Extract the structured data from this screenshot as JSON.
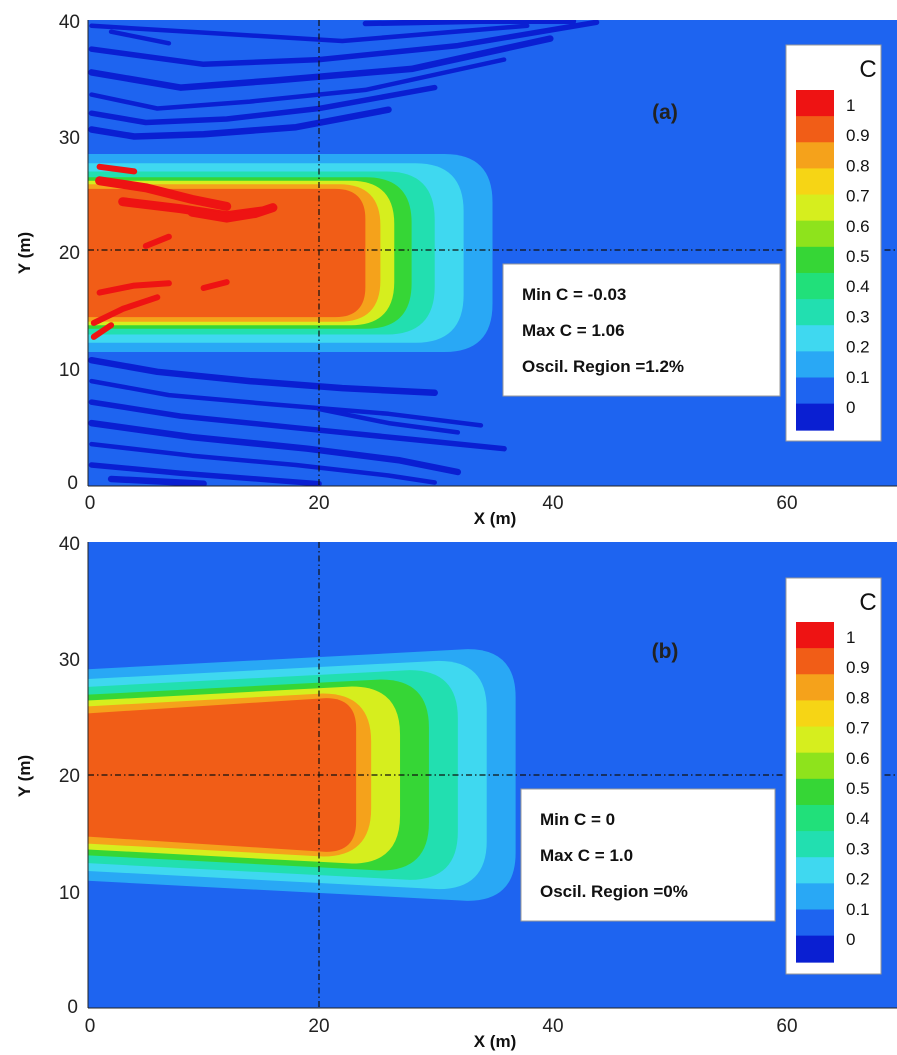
{
  "chart_data": [
    {
      "type": "heatmap",
      "panel_label": "(a)",
      "xlabel": "X (m)",
      "ylabel": "Y (m)",
      "xlim": [
        0,
        70
      ],
      "ylim": [
        0,
        40
      ],
      "x_ticks": [
        "0",
        "20",
        "40",
        "60"
      ],
      "y_ticks": [
        "0",
        "10",
        "20",
        "30",
        "40"
      ],
      "reference_lines": {
        "x": 20,
        "y": 20
      },
      "colorbar": {
        "title": "C",
        "levels": [
          "1",
          "0.9",
          "0.8",
          "0.7",
          "0.6",
          "0.5",
          "0.4",
          "0.3",
          "0.2",
          "0.1",
          "0"
        ]
      },
      "stats": [
        "Min C = -0.03",
        "Max C = 1.06",
        "Oscil. Region =1.2%"
      ],
      "contours": [
        {
          "level": 0.1,
          "x_front": 35,
          "y_half_width": 8.5
        },
        {
          "level": 0.2,
          "x_front": 32.5,
          "y_half_width": 7.7
        },
        {
          "level": 0.3,
          "x_front": 30,
          "y_half_width": 7.0
        },
        {
          "level": 0.5,
          "x_front": 28,
          "y_half_width": 6.5
        },
        {
          "level": 0.7,
          "x_front": 26.5,
          "y_half_width": 6.2
        },
        {
          "level": 0.9,
          "x_front": 25.3,
          "y_half_width": 5.9
        }
      ],
      "oscillation_bands": true
    },
    {
      "type": "heatmap",
      "panel_label": "(b)",
      "xlabel": "X (m)",
      "ylabel": "Y (m)",
      "xlim": [
        0,
        70
      ],
      "ylim": [
        0,
        40
      ],
      "x_ticks": [
        "0",
        "20",
        "40",
        "60"
      ],
      "y_ticks": [
        "0",
        "10",
        "20",
        "30",
        "40"
      ],
      "reference_lines": {
        "x": 20,
        "y": 20
      },
      "colorbar": {
        "title": "C",
        "levels": [
          "1",
          "0.9",
          "0.8",
          "0.7",
          "0.6",
          "0.5",
          "0.4",
          "0.3",
          "0.2",
          "0.1",
          "0"
        ]
      },
      "stats": [
        "Min C = 0",
        "Max C = 1.0",
        "Oscil. Region =0%"
      ],
      "contours": [
        {
          "level": 0.1,
          "x_front": 37,
          "y_half_width": 10.8
        },
        {
          "level": 0.2,
          "x_front": 34.5,
          "y_half_width": 9.8
        },
        {
          "level": 0.3,
          "x_front": 32,
          "y_half_width": 9.0
        },
        {
          "level": 0.5,
          "x_front": 29.5,
          "y_half_width": 8.2
        },
        {
          "level": 0.7,
          "x_front": 27,
          "y_half_width": 7.6
        },
        {
          "level": 0.9,
          "x_front": 24.5,
          "y_half_width": 7.0
        }
      ],
      "oscillation_bands": false
    }
  ],
  "colors": {
    "background_level": "#1e64f0",
    "dark_oscillation": "#0a1fd2",
    "c_0.1": "#29a8f5",
    "c_0.2": "#3fd8f0",
    "c_0.3": "#22dfb0",
    "c_0.5": "#36d636",
    "c_0.7": "#d6ee1e",
    "c_0.9": "#f5a21b",
    "c_1.0": "#f15d17",
    "c_max": "#ee1313"
  }
}
